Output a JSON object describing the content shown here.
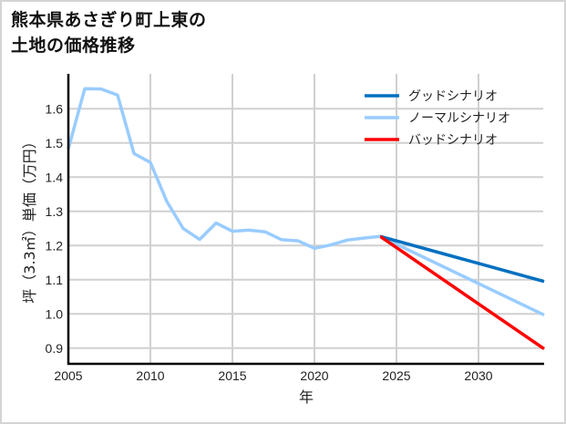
{
  "title_line1": "熊本県あさぎり町上東の",
  "title_line2": "土地の価格推移",
  "chart_data": {
    "type": "line",
    "title": "熊本県あさぎり町上東の土地の価格推移",
    "xlabel": "年",
    "ylabel": "坪（3.3㎡）単価（万円）",
    "xlim": [
      2005,
      2034
    ],
    "ylim": [
      0.86,
      1.7
    ],
    "x_ticks": [
      2005,
      2010,
      2015,
      2020,
      2025,
      2030
    ],
    "y_ticks": [
      0.9,
      1.0,
      1.1,
      1.2,
      1.3,
      1.4,
      1.5,
      1.6
    ],
    "grid": true,
    "legend_position": "upper right",
    "series": [
      {
        "name": "ノーマルシナリオ(実績)",
        "color": "#99ccff",
        "x": [
          2005,
          2006,
          2007,
          2008,
          2009,
          2010,
          2011,
          2012,
          2013,
          2014,
          2015,
          2016,
          2017,
          2018,
          2019,
          2020,
          2021,
          2022,
          2023,
          2024
        ],
        "values": [
          1.483,
          1.659,
          1.658,
          1.64,
          1.469,
          1.443,
          1.329,
          1.25,
          1.218,
          1.266,
          1.242,
          1.245,
          1.24,
          1.217,
          1.214,
          1.192,
          1.202,
          1.216,
          1.222,
          1.227
        ]
      },
      {
        "name": "グッドシナリオ",
        "color": "#0070c0",
        "x": [
          2024,
          2034
        ],
        "values": [
          1.227,
          1.095
        ]
      },
      {
        "name": "ノーマルシナリオ",
        "color": "#99ccff",
        "x": [
          2024,
          2034
        ],
        "values": [
          1.227,
          0.997
        ]
      },
      {
        "name": "バッドシナリオ",
        "color": "#ff0000",
        "x": [
          2024,
          2034
        ],
        "values": [
          1.227,
          0.898
        ]
      }
    ]
  },
  "legend": [
    {
      "label": "グッドシナリオ",
      "color": "#0070c0"
    },
    {
      "label": "ノーマルシナリオ",
      "color": "#99ccff"
    },
    {
      "label": "バッドシナリオ",
      "color": "#ff0000"
    }
  ]
}
